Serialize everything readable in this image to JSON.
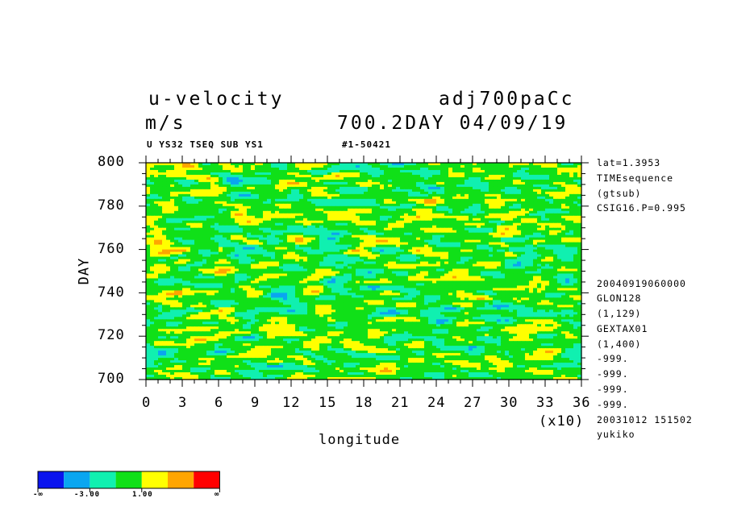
{
  "header": {
    "title_left": "u-velocity",
    "units": "m/s",
    "title_right": "adj700paCc",
    "subtitle_right": "700.2DAY 04/09/19",
    "small_left": "U YS32 TSEQ SUB YS1",
    "small_right": "#1-50421"
  },
  "side_text": [
    "lat=1.3953",
    "TIMEsequence",
    "(gtsub)",
    "CSIG16.P=0.995",
    "20040919060000",
    "GLON128",
    "(1,129)",
    "GEXTAX01",
    "(1,400)",
    "-999.",
    "-999.",
    "-999.",
    "-999.",
    "20031012 151502",
    "yukiko"
  ],
  "chart_data": {
    "type": "heatmap",
    "xlabel": "longitude",
    "ylabel": "DAY",
    "x_multiplier_label": "(x10)",
    "xlim": [
      0,
      36
    ],
    "ylim": [
      700,
      800
    ],
    "x_tick_labels": [
      "0",
      "3",
      "6",
      "9",
      "12",
      "15",
      "18",
      "21",
      "24",
      "27",
      "30",
      "33",
      "36"
    ],
    "y_tick_labels": [
      "700",
      "720",
      "740",
      "760",
      "780",
      "800"
    ],
    "colorbar": {
      "colors": [
        "#0a14ee",
        "#0aa6f0",
        "#10f0b0",
        "#10e018",
        "#ffff00",
        "#ffa500",
        "#ff0000"
      ],
      "labels": [
        "-∞",
        "-3.00",
        "1.00",
        "∞"
      ]
    }
  }
}
